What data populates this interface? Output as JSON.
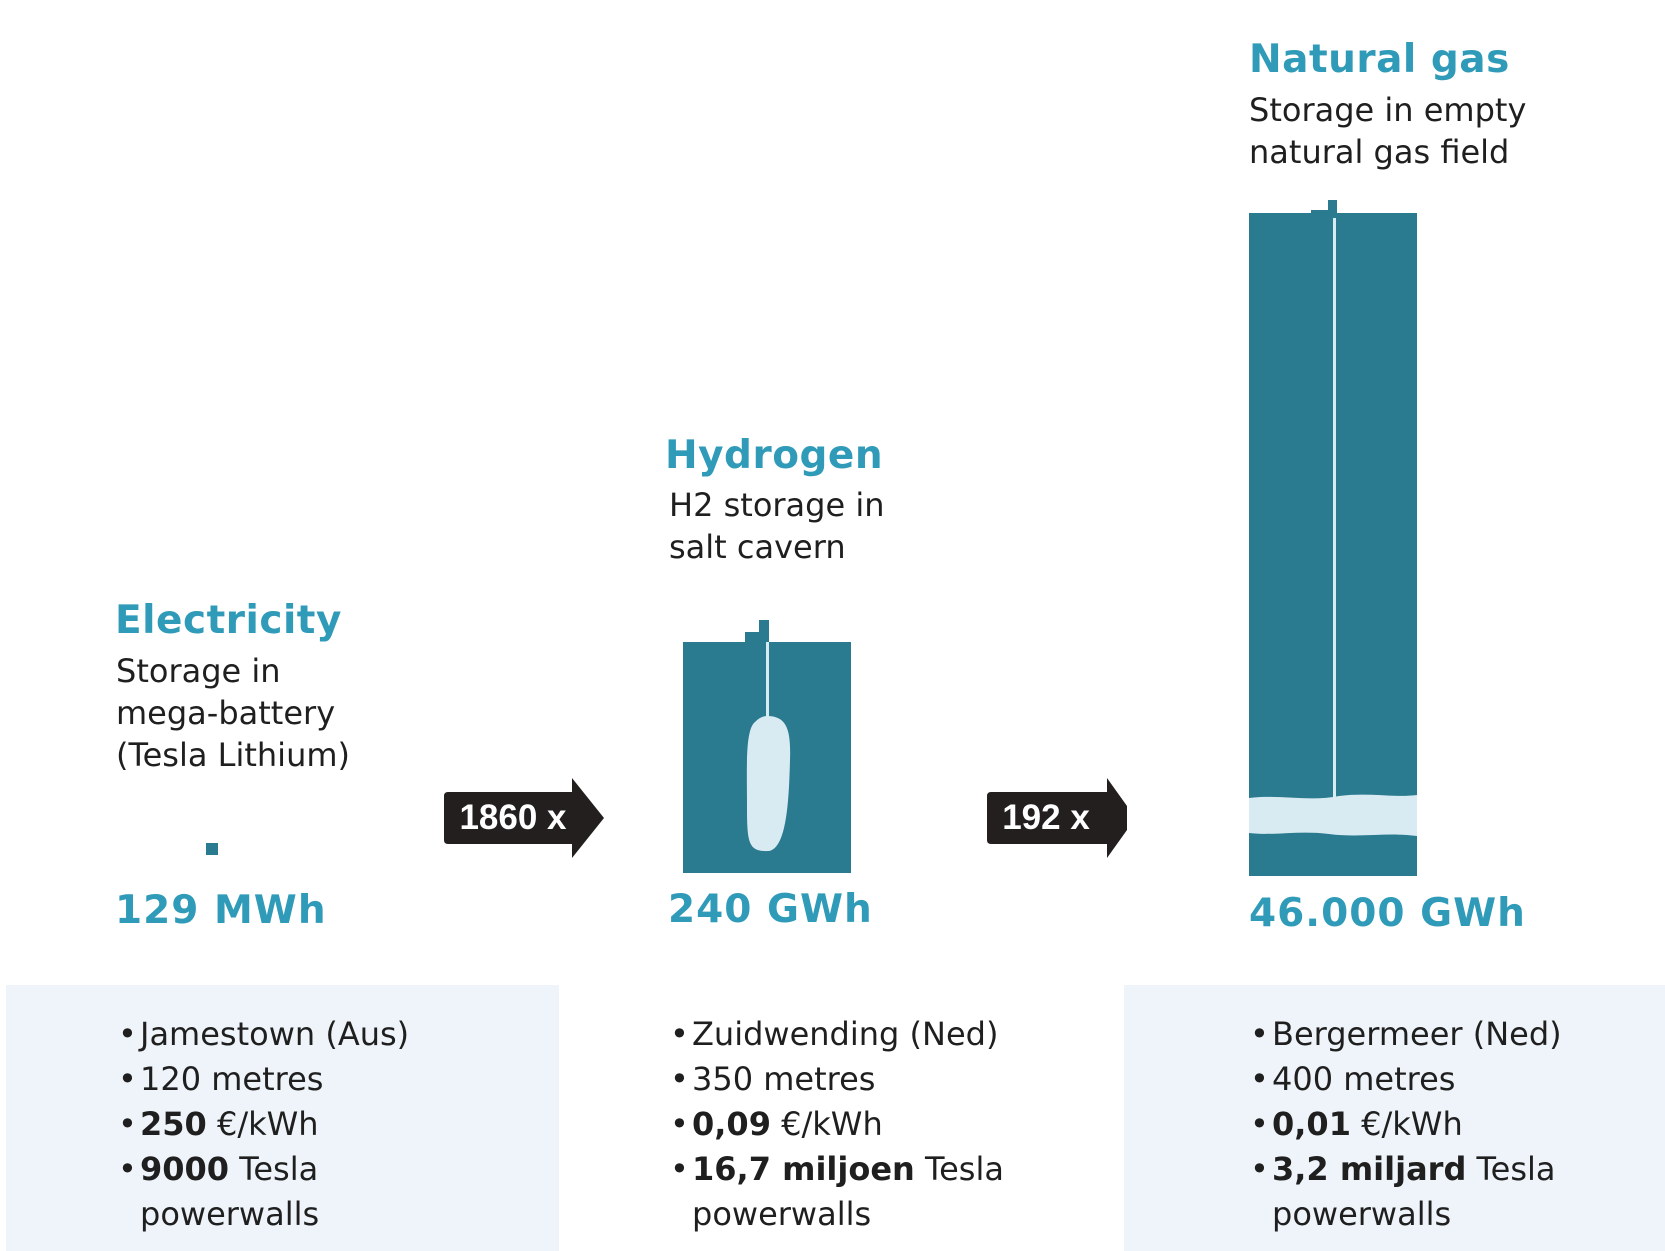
{
  "columns": [
    {
      "title": "Electricity",
      "subtitle_lines": [
        "Storage in",
        "mega-battery",
        "(Tesla Lithium)"
      ],
      "capacity": "129 MWh",
      "facts": {
        "location": "Jamestown (Aus)",
        "depth": "120 metres",
        "cost_value": "250",
        "cost_unit": "€/kWh",
        "powerwalls_value": "9000",
        "powerwalls_text": "Tesla",
        "powerwalls_text2": "powerwalls"
      }
    },
    {
      "title": "Hydrogen",
      "subtitle_lines": [
        "H2 storage in",
        "salt cavern"
      ],
      "capacity": "240 GWh",
      "facts": {
        "location": "Zuidwending (Ned)",
        "depth": "350 metres",
        "cost_value": "0,09",
        "cost_unit": "€/kWh",
        "powerwalls_value": "16,7 miljoen",
        "powerwalls_text": "Tesla",
        "powerwalls_text2": "powerwalls"
      }
    },
    {
      "title": "Natural gas",
      "subtitle_lines": [
        "Storage in empty",
        "natural gas field"
      ],
      "capacity": "46.000 GWh",
      "facts": {
        "location": "Bergermeer (Ned)",
        "depth": "400 metres",
        "cost_value": "0,01",
        "cost_unit": "€/kWh",
        "powerwalls_value": "3,2 miljard",
        "powerwalls_text": "Tesla",
        "powerwalls_text2": "powerwalls"
      }
    }
  ],
  "arrows": [
    {
      "label": "1860 x"
    },
    {
      "label": "192 x"
    }
  ],
  "bullet": "•",
  "colors": {
    "accent": "#2f9bb8",
    "block": "#2a7a90",
    "light": "#d9ebf2",
    "arrow": "#231f1f",
    "panel": "#eef4f9"
  }
}
